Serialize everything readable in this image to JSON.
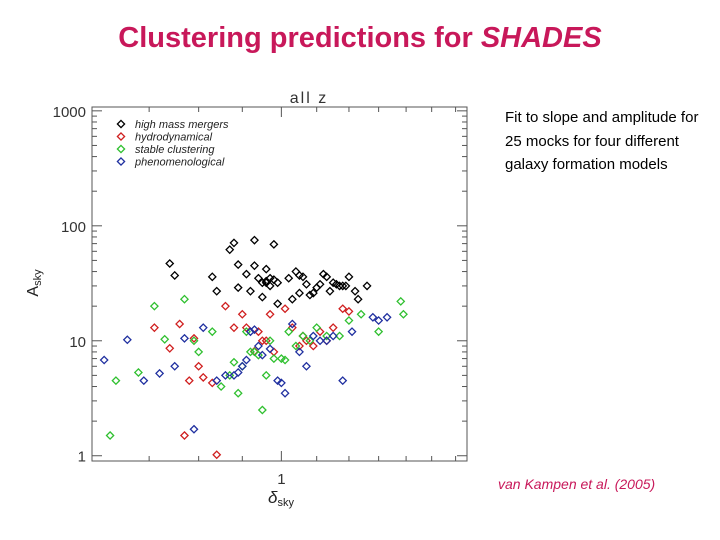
{
  "slide": {
    "title_prefix": "Clustering predictions for ",
    "title_emphasis": "SHADES",
    "note": "Fit to slope and amplitude for 25 mocks for four different galaxy formation models",
    "credit": "van Kampen et al. (2005)"
  },
  "colors": {
    "title": "#c8185a",
    "credit": "#c8185a"
  },
  "chart_data": {
    "type": "scatter",
    "title": "all z",
    "xlabel": "δ_sky",
    "ylabel": "A_sky",
    "x_scale": "log",
    "y_scale": "log",
    "xlim": [
      0.6,
      1.65
    ],
    "ylim": [
      0.9,
      1080
    ],
    "x_ticks": [
      {
        "value": 1,
        "label": "1"
      }
    ],
    "y_ticks": [
      {
        "value": 1,
        "label": "1"
      },
      {
        "value": 10,
        "label": "10"
      },
      {
        "value": 100,
        "label": "100"
      },
      {
        "value": 1000,
        "label": "1000"
      }
    ],
    "grid": false,
    "legend_position": "top-left",
    "marker": "diamond-open",
    "series": [
      {
        "name": "high mass mergers",
        "color": "#000000",
        "points": [
          [
            0.74,
            47
          ],
          [
            0.75,
            37
          ],
          [
            0.83,
            36
          ],
          [
            0.84,
            27
          ],
          [
            0.87,
            62
          ],
          [
            0.88,
            71
          ],
          [
            0.89,
            46
          ],
          [
            0.89,
            29
          ],
          [
            0.91,
            38
          ],
          [
            0.92,
            27
          ],
          [
            0.93,
            75
          ],
          [
            0.93,
            45
          ],
          [
            0.94,
            35
          ],
          [
            0.95,
            32
          ],
          [
            0.95,
            24
          ],
          [
            0.96,
            32
          ],
          [
            0.96,
            42
          ],
          [
            0.96,
            33
          ],
          [
            0.97,
            30
          ],
          [
            0.97,
            35
          ],
          [
            0.98,
            34
          ],
          [
            0.98,
            69
          ],
          [
            0.99,
            32
          ],
          [
            0.99,
            21
          ],
          [
            1.02,
            35
          ],
          [
            1.03,
            23
          ],
          [
            1.04,
            40
          ],
          [
            1.05,
            26
          ],
          [
            1.05,
            37
          ],
          [
            1.06,
            36
          ],
          [
            1.07,
            31
          ],
          [
            1.08,
            25
          ],
          [
            1.09,
            26
          ],
          [
            1.1,
            29
          ],
          [
            1.11,
            31
          ],
          [
            1.12,
            38
          ],
          [
            1.13,
            36
          ],
          [
            1.14,
            27
          ],
          [
            1.15,
            32
          ],
          [
            1.16,
            31
          ],
          [
            1.17,
            30
          ],
          [
            1.18,
            30
          ],
          [
            1.19,
            30
          ],
          [
            1.2,
            36
          ],
          [
            1.22,
            27
          ],
          [
            1.23,
            23
          ],
          [
            1.26,
            30
          ]
        ]
      },
      {
        "name": "hydrodynamical",
        "color": "#d02020",
        "points": [
          [
            0.71,
            13
          ],
          [
            0.74,
            8.6
          ],
          [
            0.76,
            14
          ],
          [
            0.77,
            1.5
          ],
          [
            0.78,
            4.5
          ],
          [
            0.79,
            10.5
          ],
          [
            0.8,
            6.0
          ],
          [
            0.81,
            4.8
          ],
          [
            0.83,
            4.3
          ],
          [
            0.84,
            1.02
          ],
          [
            0.86,
            20
          ],
          [
            0.88,
            13
          ],
          [
            0.9,
            17
          ],
          [
            0.91,
            13
          ],
          [
            0.93,
            8.1
          ],
          [
            0.94,
            12
          ],
          [
            0.95,
            10
          ],
          [
            0.96,
            10
          ],
          [
            0.97,
            17
          ],
          [
            0.98,
            8
          ],
          [
            1.01,
            19
          ],
          [
            1.03,
            13
          ],
          [
            1.05,
            9
          ],
          [
            1.06,
            11
          ],
          [
            1.07,
            10
          ],
          [
            1.09,
            9
          ],
          [
            1.11,
            12
          ],
          [
            1.13,
            10
          ],
          [
            1.15,
            13
          ],
          [
            1.18,
            19
          ],
          [
            1.2,
            18
          ]
        ]
      },
      {
        "name": "stable clustering",
        "color": "#30c030",
        "points": [
          [
            0.63,
            1.5
          ],
          [
            0.64,
            4.5
          ],
          [
            0.68,
            5.3
          ],
          [
            0.71,
            20
          ],
          [
            0.73,
            10.3
          ],
          [
            0.77,
            23
          ],
          [
            0.79,
            10
          ],
          [
            0.8,
            8
          ],
          [
            0.83,
            12
          ],
          [
            0.85,
            4
          ],
          [
            0.87,
            5
          ],
          [
            0.88,
            6.5
          ],
          [
            0.89,
            3.5
          ],
          [
            0.9,
            6
          ],
          [
            0.91,
            12
          ],
          [
            0.92,
            8
          ],
          [
            0.93,
            8
          ],
          [
            0.94,
            7.5
          ],
          [
            0.95,
            2.5
          ],
          [
            0.96,
            5
          ],
          [
            0.97,
            10
          ],
          [
            0.98,
            7
          ],
          [
            1.0,
            7
          ],
          [
            1.01,
            6.8
          ],
          [
            1.02,
            12
          ],
          [
            1.04,
            9
          ],
          [
            1.06,
            11
          ],
          [
            1.08,
            10
          ],
          [
            1.1,
            13
          ],
          [
            1.13,
            11
          ],
          [
            1.17,
            11
          ],
          [
            1.2,
            15
          ],
          [
            1.24,
            17
          ],
          [
            1.3,
            12
          ],
          [
            1.38,
            22
          ],
          [
            1.39,
            17
          ]
        ]
      },
      {
        "name": "phenomenological",
        "color": "#2030a0",
        "points": [
          [
            0.62,
            6.8
          ],
          [
            0.66,
            10.2
          ],
          [
            0.69,
            4.5
          ],
          [
            0.72,
            5.2
          ],
          [
            0.75,
            6
          ],
          [
            0.77,
            10.5
          ],
          [
            0.79,
            1.7
          ],
          [
            0.81,
            13
          ],
          [
            0.84,
            4.5
          ],
          [
            0.86,
            5
          ],
          [
            0.88,
            5
          ],
          [
            0.89,
            5.3
          ],
          [
            0.9,
            6
          ],
          [
            0.91,
            6.8
          ],
          [
            0.92,
            12
          ],
          [
            0.93,
            12.5
          ],
          [
            0.94,
            9
          ],
          [
            0.95,
            7.5
          ],
          [
            0.97,
            8.5
          ],
          [
            0.99,
            4.5
          ],
          [
            1.0,
            4.3
          ],
          [
            1.01,
            3.5
          ],
          [
            1.03,
            14
          ],
          [
            1.05,
            8
          ],
          [
            1.07,
            6
          ],
          [
            1.09,
            11
          ],
          [
            1.11,
            10
          ],
          [
            1.13,
            10
          ],
          [
            1.15,
            11
          ],
          [
            1.18,
            4.5
          ],
          [
            1.21,
            12
          ],
          [
            1.28,
            16
          ],
          [
            1.3,
            15
          ],
          [
            1.33,
            16
          ]
        ]
      }
    ]
  }
}
